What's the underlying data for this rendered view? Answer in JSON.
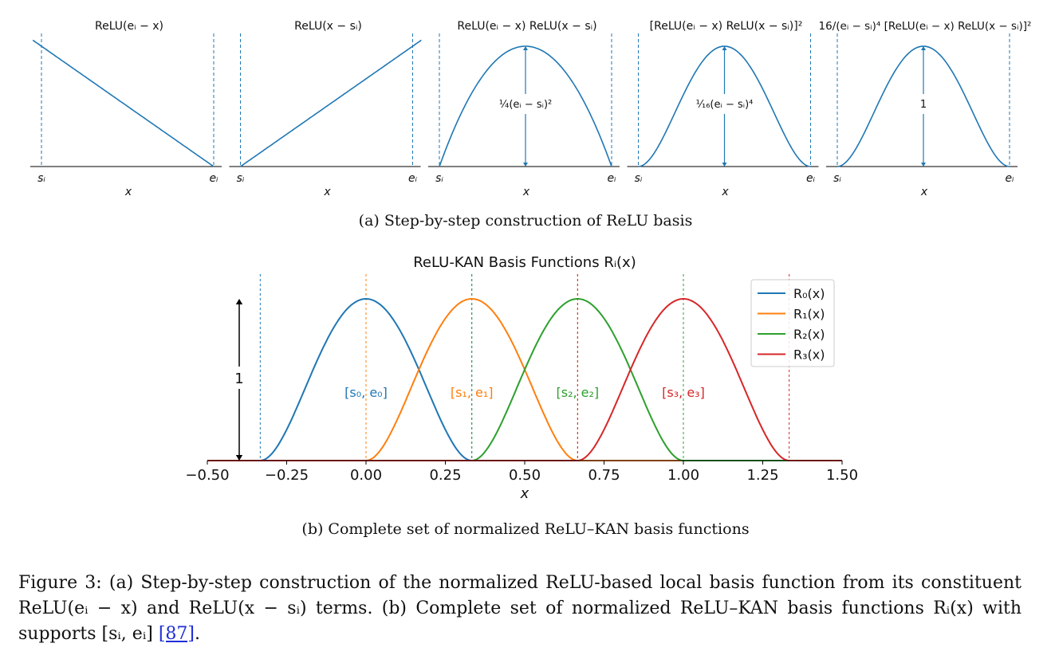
{
  "colors": {
    "curve": "#1f77b4",
    "R0": "#1f77b4",
    "R1": "#ff7f0e",
    "R2": "#2ca02c",
    "R3": "#d62728",
    "axis": "#000000"
  },
  "captions": {
    "a": "(a) Step-by-step construction of ReLU basis",
    "b": "(b) Complete set of normalized ReLU–KAN basis functions",
    "figure_label": "Figure 3:",
    "figure_text": " (a) Step-by-step construction of the normalized ReLU-based local basis function from its constituent ReLU(eᵢ − x) and ReLU(x − sᵢ) terms. (b) Complete set of normalized ReLU–KAN basis functions Rᵢ(x) with supports [sᵢ, eᵢ] ",
    "figure_ref": "[87]",
    "figure_end": "."
  },
  "chart_data": [
    {
      "type": "line",
      "title": "ReLU(eᵢ − x)",
      "function": "relu_e_minus_x",
      "x": [
        0,
        1
      ],
      "y": [
        1,
        0
      ],
      "xlabel": "x",
      "tick_labels": [
        "sᵢ",
        "eᵢ"
      ],
      "annotation": ""
    },
    {
      "type": "line",
      "title": "ReLU(x − sᵢ)",
      "function": "relu_x_minus_s",
      "x": [
        0,
        1
      ],
      "y": [
        0,
        1
      ],
      "xlabel": "x",
      "tick_labels": [
        "sᵢ",
        "eᵢ"
      ],
      "annotation": ""
    },
    {
      "type": "line",
      "title": "ReLU(eᵢ − x) ReLU(x − sᵢ)",
      "function": "product",
      "xlabel": "x",
      "tick_labels": [
        "sᵢ",
        "eᵢ"
      ],
      "annotation": "¼(eᵢ − sᵢ)²"
    },
    {
      "type": "line",
      "title": "[ReLU(eᵢ − x) ReLU(x − sᵢ)]²",
      "function": "product_squared",
      "xlabel": "x",
      "tick_labels": [
        "sᵢ",
        "eᵢ"
      ],
      "annotation": "¹⁄₁₆(eᵢ − sᵢ)⁴"
    },
    {
      "type": "line",
      "title": "16/(eᵢ − sᵢ)⁴ [ReLU(eᵢ − x) ReLU(x − sᵢ)]²",
      "function": "normalized",
      "xlabel": "x",
      "tick_labels": [
        "sᵢ",
        "eᵢ"
      ],
      "annotation": "1"
    },
    {
      "type": "line",
      "title": "ReLU-KAN Basis Functions Rᵢ(x)",
      "xlabel": "x",
      "ylabel": "",
      "xlim": [
        -0.5,
        1.5
      ],
      "ylim": [
        0,
        1
      ],
      "xticks": [
        -0.5,
        -0.25,
        0.0,
        0.25,
        0.5,
        0.75,
        1.0,
        1.25,
        1.5
      ],
      "xtick_labels": [
        "−0.50",
        "−0.25",
        "0.00",
        "0.25",
        "0.50",
        "0.75",
        "1.00",
        "1.25",
        "1.50"
      ],
      "height_annotation": "1",
      "legend_position": "top-right",
      "series": [
        {
          "name": "R₀(x)",
          "support": [
            -0.3333,
            0.3333
          ],
          "peak": 1,
          "interval_label": "[s₀, e₀]"
        },
        {
          "name": "R₁(x)",
          "support": [
            0.0,
            0.6667
          ],
          "peak": 1,
          "interval_label": "[s₁, e₁]"
        },
        {
          "name": "R₂(x)",
          "support": [
            0.3333,
            1.0
          ],
          "peak": 1,
          "interval_label": "[s₂, e₂]"
        },
        {
          "name": "R₃(x)",
          "support": [
            0.6667,
            1.3333
          ],
          "peak": 1,
          "interval_label": "[s₃, e₃]"
        }
      ]
    }
  ]
}
